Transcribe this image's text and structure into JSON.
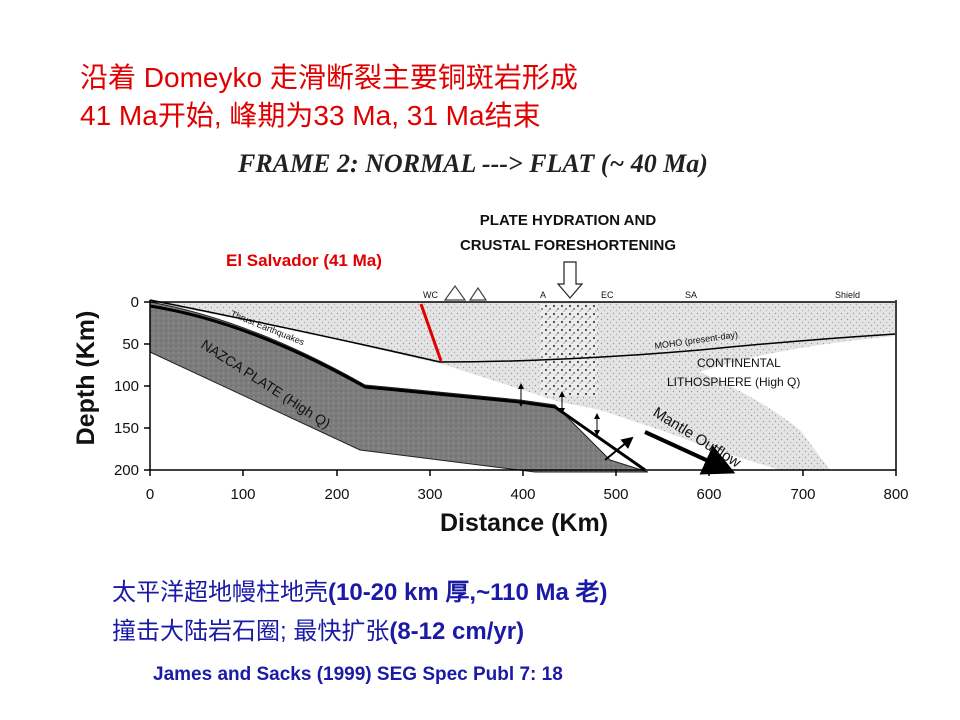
{
  "slide": {
    "title_line1": "沿着 Domeyko 走滑断裂主要铜斑岩形成",
    "title_line2": "41 Ma开始, 峰期为33 Ma, 31 Ma结束",
    "footer_line1_cn": "太平洋超地幔柱地壳",
    "footer_line1_bold": "(10-20 km 厚,~110 Ma 老)",
    "footer_line2_cn": "撞击大陆岩石圈; 最快扩张",
    "footer_line2_bold": "(8-12 cm/yr)",
    "reference": "James and Sacks (1999) SEG Spec Publ 7: 18"
  },
  "figure": {
    "frame_title": "FRAME 2:  NORMAL ---> FLAT (~ 40 Ma)",
    "hydration_label_1": "PLATE HYDRATION AND",
    "hydration_label_2": "CRUSTAL FORESHORTENING",
    "el_salvador": "El Salvador (41 Ma)",
    "y_axis_label": "Depth (Km)",
    "x_axis_label": "Distance (Km)",
    "y_ticks": [
      "0",
      "50",
      "100",
      "150",
      "200"
    ],
    "x_ticks": [
      "0",
      "100",
      "200",
      "300",
      "400",
      "500",
      "600",
      "700",
      "800"
    ],
    "surface_labels": {
      "wc": "WC",
      "a": "A",
      "ec": "EC",
      "sa": "SA",
      "shield": "Shield"
    },
    "thrust_label": "Thrust Earthquakes",
    "moho_label": "MOHO (present-day)",
    "continental_1": "CONTINENTAL",
    "continental_2": "LITHOSPHERE (High Q)",
    "nazca_label": "NAZCA PLATE (High Q)",
    "mantle_outflow": "Mantle Outflow",
    "colors": {
      "accent_red": "#e00000",
      "footer_blue": "#1a1aa6"
    }
  }
}
